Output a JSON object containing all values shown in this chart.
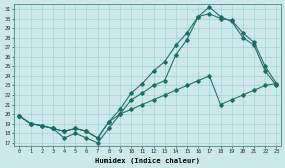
{
  "xlabel": "Humidex (Indice chaleur)",
  "bg_color": "#cce8e8",
  "line_color": "#1a6e64",
  "grid_color": "#99cccc",
  "ylim_min": 16.7,
  "ylim_max": 31.5,
  "xlim_min": -0.5,
  "xlim_max": 23.4,
  "yticks": [
    17,
    18,
    19,
    20,
    21,
    22,
    23,
    24,
    25,
    26,
    27,
    28,
    29,
    30,
    31
  ],
  "xticks": [
    0,
    1,
    2,
    3,
    4,
    5,
    6,
    7,
    8,
    9,
    10,
    11,
    12,
    13,
    14,
    15,
    16,
    17,
    18,
    19,
    20,
    21,
    22,
    23
  ],
  "line1_x": [
    0,
    1,
    2,
    3,
    4,
    5,
    6,
    7,
    8,
    9,
    10,
    11,
    12,
    13,
    14,
    15,
    16,
    17,
    18,
    19,
    20,
    21,
    22,
    23
  ],
  "line1_y": [
    19.8,
    19.0,
    18.8,
    18.5,
    17.5,
    18.0,
    17.5,
    17.0,
    18.5,
    20.0,
    21.5,
    22.2,
    23.0,
    23.5,
    26.2,
    27.8,
    30.2,
    31.2,
    30.2,
    29.7,
    28.0,
    27.2,
    24.5,
    23.0
  ],
  "line2_x": [
    0,
    1,
    2,
    3,
    4,
    5,
    6,
    7,
    8,
    9,
    10,
    11,
    12,
    13,
    14,
    15,
    16,
    17,
    18,
    19,
    20,
    21,
    22,
    23
  ],
  "line2_y": [
    19.8,
    19.0,
    18.8,
    18.5,
    18.2,
    18.5,
    18.2,
    17.5,
    19.2,
    20.5,
    22.2,
    23.2,
    24.5,
    25.5,
    27.2,
    28.5,
    30.2,
    30.5,
    30.0,
    29.8,
    28.5,
    27.5,
    25.0,
    23.2
  ],
  "line3_x": [
    0,
    1,
    2,
    3,
    4,
    5,
    6,
    7,
    8,
    9,
    10,
    11,
    12,
    13,
    14,
    15,
    16,
    17,
    18,
    19,
    20,
    21,
    22,
    23
  ],
  "line3_y": [
    19.8,
    19.0,
    18.8,
    18.5,
    18.2,
    18.5,
    18.2,
    17.5,
    19.2,
    20.0,
    20.5,
    21.0,
    21.5,
    22.0,
    22.5,
    23.0,
    23.5,
    24.0,
    21.0,
    21.5,
    22.0,
    22.5,
    23.0,
    23.2
  ]
}
